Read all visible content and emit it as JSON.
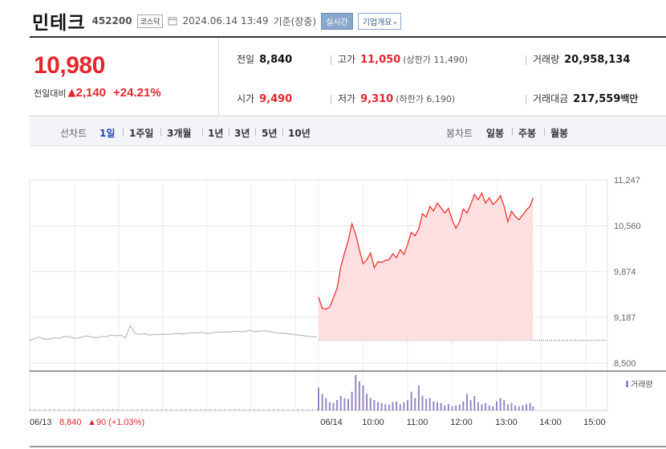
{
  "header": {
    "name": "민테크",
    "code": "452200",
    "market": "코스닥",
    "datetime": "2024.06.14 13:49",
    "basis": "기준(장중)",
    "realtime_btn": "실시간",
    "company_btn": "기업개요",
    "icons": {
      "clock": "clock-icon",
      "dropdown": "chevron-down-icon"
    }
  },
  "quote": {
    "price": "10,980",
    "change_label": "전일대비",
    "change_arrow": "▲",
    "change_abs": "2,140",
    "change_pct": "+24.21%",
    "prev_close_label": "전일",
    "prev_close": "8,840",
    "open_label": "시가",
    "open": "9,490",
    "high_label": "고가",
    "high": "11,050",
    "upper_limit": "(상한가 11,490)",
    "low_label": "저가",
    "low": "9,310",
    "lower_limit": "(하한가 6,190)",
    "volume_label": "거래량",
    "volume": "20,958,134",
    "value_label": "거래대금",
    "value": "217,559",
    "value_unit": "백만"
  },
  "period_bar": {
    "line_label": "선차트",
    "line_options": [
      "1일",
      "1주일",
      "3개월",
      "1년",
      "3년",
      "5년",
      "10년"
    ],
    "line_active": "1일",
    "candle_label": "봉차트",
    "candle_options": [
      "일봉",
      "주봉",
      "월봉"
    ]
  },
  "colors": {
    "up": "#e4262d",
    "down": "#2149b4",
    "line_today": "#ee3333",
    "fill_today": "#ffdfe0",
    "line_prev": "#bbbbbb",
    "volume": "#9587c4"
  },
  "chart_data": {
    "type": "line",
    "y_ticks": [
      "11,247",
      "10,560",
      "9,874",
      "9,187",
      "8,500"
    ],
    "ylim": [
      8500,
      11247
    ],
    "baseline": 8840,
    "x_ticks": [
      "06/14",
      "10:00",
      "11:00",
      "12:00",
      "13:00",
      "14:00",
      "15:00"
    ],
    "volume_label": "거래량",
    "prev_day": {
      "date": "06/13",
      "close": "8,840",
      "change": "▲90 (+1.03%)",
      "values": [
        8835,
        8870,
        8890,
        8860,
        8855,
        8880,
        8870,
        8890,
        8900,
        8880,
        8870,
        8895,
        8905,
        8890,
        8880,
        8900,
        8895,
        8920,
        8910,
        8920,
        8880,
        9060,
        8950,
        8930,
        8940,
        8920,
        8930,
        8925,
        8935,
        8930,
        8940,
        8945,
        8935,
        8950,
        8955,
        8950,
        8960,
        8945,
        8950,
        8965,
        8960,
        8970,
        8965,
        8980,
        8970,
        8975,
        8990,
        8970,
        8980,
        8985,
        8975,
        8960,
        8950,
        8945,
        8940,
        8930,
        8920,
        8915,
        8900,
        8895,
        8890
      ]
    },
    "today": {
      "times": [
        "09:00",
        "09:05",
        "09:10",
        "09:15",
        "09:20",
        "09:25",
        "09:30",
        "09:35",
        "09:40",
        "09:45",
        "09:50",
        "09:55",
        "10:00",
        "10:05",
        "10:10",
        "10:15",
        "10:20",
        "10:25",
        "10:30",
        "10:35",
        "10:40",
        "10:45",
        "10:50",
        "10:55",
        "11:00",
        "11:05",
        "11:10",
        "11:15",
        "11:20",
        "11:25",
        "11:30",
        "11:35",
        "11:40",
        "11:45",
        "11:50",
        "11:55",
        "12:00",
        "12:05",
        "12:10",
        "12:15",
        "12:20",
        "12:25",
        "12:30",
        "12:35",
        "12:40",
        "12:45",
        "12:50",
        "12:55",
        "13:00",
        "13:05",
        "13:10",
        "13:15",
        "13:20",
        "13:25",
        "13:30",
        "13:35",
        "13:40",
        "13:45",
        "13:49"
      ],
      "values": [
        9490,
        9320,
        9310,
        9340,
        9480,
        9620,
        9950,
        10150,
        10340,
        10590,
        10430,
        10200,
        9990,
        10050,
        10150,
        9930,
        10020,
        10010,
        10040,
        10050,
        10140,
        10080,
        10200,
        10130,
        10280,
        10460,
        10410,
        10510,
        10740,
        10690,
        10850,
        10780,
        10900,
        10830,
        10750,
        10820,
        10650,
        10520,
        10620,
        10810,
        10750,
        10880,
        11030,
        10950,
        11050,
        10900,
        10980,
        10880,
        10930,
        11010,
        10850,
        10620,
        10780,
        10700,
        10650,
        10720,
        10800,
        10850,
        10980
      ],
      "volume": [
        55,
        40,
        30,
        20,
        18,
        25,
        35,
        30,
        28,
        45,
        85,
        70,
        60,
        40,
        30,
        25,
        20,
        18,
        15,
        14,
        20,
        22,
        15,
        20,
        25,
        45,
        30,
        60,
        35,
        28,
        30,
        22,
        20,
        18,
        12,
        15,
        10,
        12,
        14,
        22,
        40,
        25,
        35,
        20,
        15,
        18,
        12,
        10,
        22,
        30,
        25,
        15,
        18,
        12,
        10,
        12,
        15,
        18,
        10
      ]
    }
  }
}
